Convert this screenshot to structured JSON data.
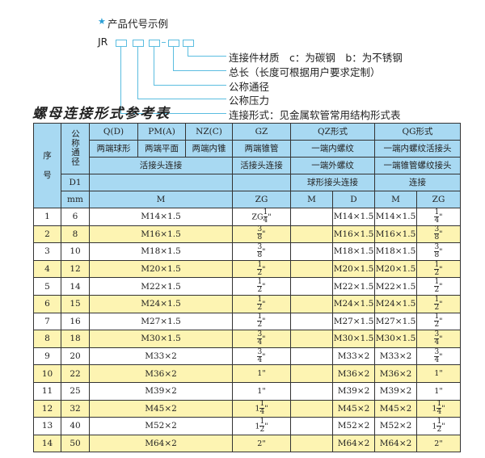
{
  "example": {
    "star": "★",
    "title": "产品代号示例",
    "prefix": "JR",
    "labels": [
      "连接件材质　c：为碳钢　b：为不锈钢",
      "总长（长度可根据用户要求定制）",
      "公称通径",
      "公称压力",
      "连接形式：见金属软管常用结构形式表"
    ]
  },
  "title": "螺母连接形式参考表",
  "header": {
    "seq": "序\n\n号",
    "dn": "公称通径",
    "q": "Q(D)",
    "pm": "PM(A)",
    "nz": "NZ(C)",
    "gz": "GZ",
    "qz": "QZ形式",
    "qg": "QG形式",
    "q2": "两端球形",
    "pm2": "两端平面",
    "nz2": "两端内锥",
    "gz2": "两端锥管",
    "qz2": "一端内螺纹",
    "qg2": "一端内螺纹活接头",
    "m3": "活接头连接",
    "gz3": "活接头连接",
    "qz3": "一端外螺纹",
    "qg3": "一端锥管螺纹接头",
    "d1": "D1",
    "qz4": "球形接头连接",
    "qg4": "连接",
    "mm": "mm",
    "m5": "M",
    "gz5": "ZG",
    "qzm": "M",
    "qzd": "D",
    "qgm": "M",
    "qgzg": "ZG"
  },
  "rows": [
    {
      "no": "1",
      "dn": "6",
      "m": "M14×1.5",
      "gz": {
        "pre": "ZG",
        "num": "1",
        "den": "4",
        "suf": "\""
      },
      "qz_m": "",
      "qz_d": "M14×1.5",
      "qg_m": "M14×1.5",
      "qg_zg": {
        "pre": "",
        "num": "1",
        "den": "4",
        "suf": "\""
      }
    },
    {
      "no": "2",
      "dn": "8",
      "m": "M16×1.5",
      "gz": {
        "pre": "",
        "num": "3",
        "den": "8",
        "suf": "\""
      },
      "qz_m": "",
      "qz_d": "M16×1.5",
      "qg_m": "M16×1.5",
      "qg_zg": {
        "pre": "",
        "num": "3",
        "den": "8",
        "suf": "\""
      }
    },
    {
      "no": "3",
      "dn": "10",
      "m": "M18×1.5",
      "gz": {
        "pre": "",
        "num": "3",
        "den": "8",
        "suf": "\""
      },
      "qz_m": "",
      "qz_d": "M18×1.5",
      "qg_m": "M18×1.5",
      "qg_zg": {
        "pre": "",
        "num": "3",
        "den": "8",
        "suf": "\""
      }
    },
    {
      "no": "4",
      "dn": "12",
      "m": "M20×1.5",
      "gz": {
        "pre": "",
        "num": "1",
        "den": "2",
        "suf": "\""
      },
      "qz_m": "",
      "qz_d": "M20×1.5",
      "qg_m": "M20×1.5",
      "qg_zg": {
        "pre": "",
        "num": "1",
        "den": "2",
        "suf": "\""
      }
    },
    {
      "no": "5",
      "dn": "14",
      "m": "M22×1.5",
      "gz": {
        "pre": "",
        "num": "1",
        "den": "2",
        "suf": "\""
      },
      "qz_m": "",
      "qz_d": "M22×1.5",
      "qg_m": "M22×1.5",
      "qg_zg": {
        "pre": "",
        "num": "1",
        "den": "2",
        "suf": "\""
      }
    },
    {
      "no": "6",
      "dn": "15",
      "m": "M24×1.5",
      "gz": {
        "pre": "",
        "num": "1",
        "den": "2",
        "suf": "\""
      },
      "qz_m": "",
      "qz_d": "M24×1.5",
      "qg_m": "M24×1.5",
      "qg_zg": {
        "pre": "",
        "num": "1",
        "den": "2",
        "suf": "\""
      }
    },
    {
      "no": "7",
      "dn": "16",
      "m": "M27×1.5",
      "gz": {
        "pre": "",
        "num": "1",
        "den": "2",
        "suf": "\""
      },
      "qz_m": "",
      "qz_d": "M27×1.5",
      "qg_m": "M27×1.5",
      "qg_zg": {
        "pre": "",
        "num": "1",
        "den": "2",
        "suf": "\""
      }
    },
    {
      "no": "8",
      "dn": "18",
      "m": "M30×1.5",
      "gz": {
        "pre": "",
        "num": "3",
        "den": "4",
        "suf": "\""
      },
      "qz_m": "",
      "qz_d": "M30×1.5",
      "qg_m": "M30×1.5",
      "qg_zg": {
        "pre": "",
        "num": "3",
        "den": "4",
        "suf": "\""
      }
    },
    {
      "no": "9",
      "dn": "20",
      "m": "M33×2",
      "gz": {
        "pre": "",
        "num": "3",
        "den": "4",
        "suf": "\""
      },
      "qz_m": "",
      "qz_d": "M33×2",
      "qg_m": "M33×2",
      "qg_zg": {
        "pre": "",
        "num": "3",
        "den": "4",
        "suf": "\""
      }
    },
    {
      "no": "10",
      "dn": "22",
      "m": "M36×2",
      "gz": {
        "pre": "1\"",
        "num": "",
        "den": "",
        "suf": ""
      },
      "qz_m": "",
      "qz_d": "M36×2",
      "qg_m": "M36×2",
      "qg_zg": {
        "pre": "1\"",
        "num": "",
        "den": "",
        "suf": ""
      }
    },
    {
      "no": "11",
      "dn": "25",
      "m": "M39×2",
      "gz": {
        "pre": "1\"",
        "num": "",
        "den": "",
        "suf": ""
      },
      "qz_m": "",
      "qz_d": "M39×2",
      "qg_m": "M39×2",
      "qg_zg": {
        "pre": "1\"",
        "num": "",
        "den": "",
        "suf": ""
      }
    },
    {
      "no": "12",
      "dn": "32",
      "m": "M45×2",
      "gz": {
        "pre": "1",
        "num": "1",
        "den": "4",
        "suf": "\""
      },
      "qz_m": "",
      "qz_d": "M45×2",
      "qg_m": "M45×2",
      "qg_zg": {
        "pre": "1",
        "num": "1",
        "den": "4",
        "suf": "\""
      }
    },
    {
      "no": "13",
      "dn": "40",
      "m": "M52×2",
      "gz": {
        "pre": "1",
        "num": "1",
        "den": "2",
        "suf": "\""
      },
      "qz_m": "",
      "qz_d": "M52×2",
      "qg_m": "M52×2",
      "qg_zg": {
        "pre": "1",
        "num": "1",
        "den": "2",
        "suf": "\""
      }
    },
    {
      "no": "14",
      "dn": "50",
      "m": "M64×2",
      "gz": {
        "pre": "2\"",
        "num": "",
        "den": "",
        "suf": ""
      },
      "qz_m": "",
      "qz_d": "M64×2",
      "qg_m": "M64×2",
      "qg_zg": {
        "pre": "2\"",
        "num": "",
        "den": "",
        "suf": ""
      }
    }
  ],
  "colors": {
    "header": "#a8d9f2",
    "alt_row": "#fdf4b2",
    "accent": "#5bbde0"
  }
}
